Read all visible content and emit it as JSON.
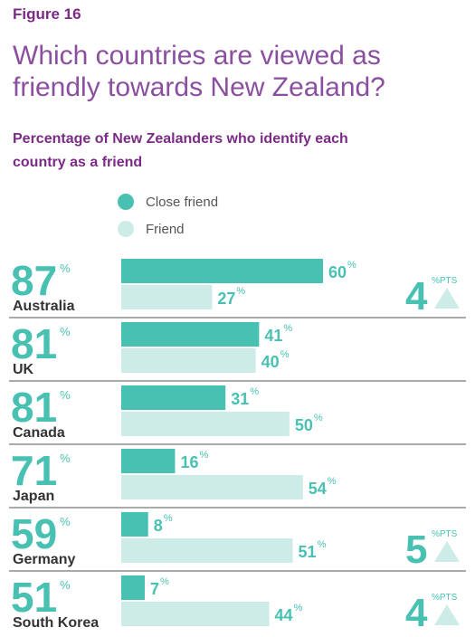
{
  "figure_label": "Figure 16",
  "title": "Which countries are viewed as friendly towards New Zealand?",
  "subtitle": "Percentage of New Zealanders who identify each country as a friend",
  "percent_sign": "%",
  "change_unit": "%PTS",
  "legend": [
    {
      "label": "Close friend",
      "color": "#48c1b2"
    },
    {
      "label": "Friend",
      "color": "#cdebe7"
    }
  ],
  "chart_data": {
    "type": "bar",
    "orientation": "horizontal",
    "stacked": false,
    "categories": [
      "Australia",
      "UK",
      "Canada",
      "Japan",
      "Germany",
      "South Korea"
    ],
    "totals": [
      87,
      81,
      81,
      71,
      59,
      51
    ],
    "series": [
      {
        "name": "Close friend",
        "values": [
          60,
          41,
          31,
          16,
          8,
          7
        ],
        "color": "#48c1b2"
      },
      {
        "name": "Friend",
        "values": [
          27,
          40,
          50,
          54,
          51,
          44
        ],
        "color": "#cdebe7"
      }
    ],
    "changes": [
      4,
      null,
      null,
      null,
      5,
      4
    ],
    "change_direction": "up",
    "xlim": [
      0,
      60
    ],
    "grid": false,
    "legend_position": "top-left"
  }
}
